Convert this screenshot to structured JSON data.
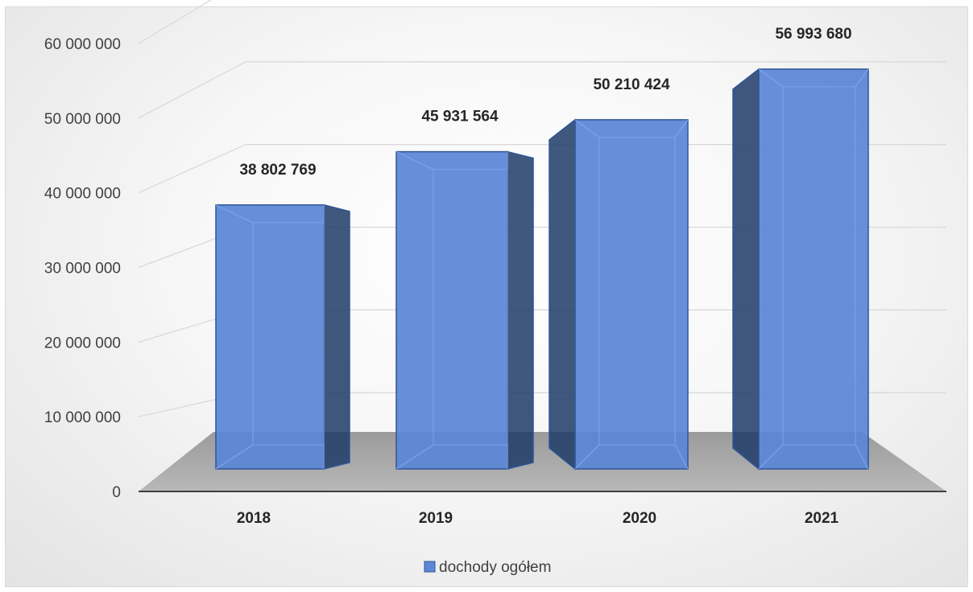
{
  "chart_data": {
    "type": "bar",
    "title": "",
    "xlabel": "",
    "ylabel": "",
    "categories": [
      "2018",
      "2019",
      "2020",
      "2021"
    ],
    "series": [
      {
        "name": "dochody ogółem",
        "values": [
          38802769,
          45931564,
          50210424,
          56993680
        ],
        "data_labels": [
          "38 802 769",
          "45 931 564",
          "50 210 424",
          "56 993 680"
        ]
      }
    ],
    "ylim": [
      0,
      60000000
    ],
    "yticks": [
      0,
      10000000,
      20000000,
      30000000,
      40000000,
      50000000,
      60000000
    ],
    "ytick_labels": [
      "0",
      "10 000 000",
      "20 000 000",
      "30 000 000",
      "40 000 000",
      "50 000 000",
      "60 000 000"
    ],
    "grid": true,
    "legend": {
      "position": "bottom",
      "entries": [
        "dochody ogółem"
      ]
    },
    "style": "3d-column",
    "colors": {
      "bar_front": "#5b87d6",
      "bar_edge": "#2f5597",
      "floor": "#a6a6a6",
      "grid": "#d9d9d9",
      "axis": "#404040"
    }
  }
}
